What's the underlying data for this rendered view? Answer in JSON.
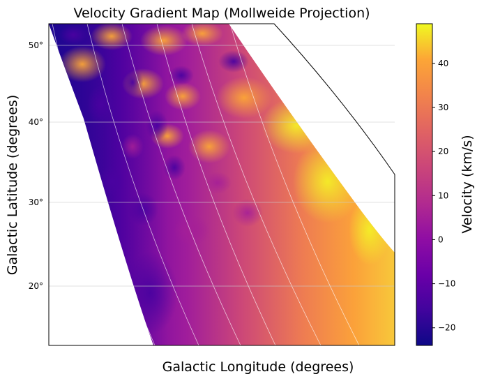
{
  "chart_data": {
    "type": "heatmap",
    "title": "Velocity Gradient Map (Mollweide Projection)",
    "xlabel": "Galactic Longitude (degrees)",
    "ylabel": "Galactic Latitude (degrees)",
    "projection": "mollweide",
    "grid": true,
    "ylim": [
      12,
      53
    ],
    "y_ticks": [
      {
        "value": 20,
        "label": "20°"
      },
      {
        "value": 30,
        "label": "30°"
      },
      {
        "value": 40,
        "label": "40°"
      },
      {
        "value": 50,
        "label": "50°"
      }
    ],
    "colorbar": {
      "label": "Velocity (km/s)",
      "colormap": "plasma",
      "range": [
        -24,
        49
      ],
      "ticks": [
        -20,
        -10,
        0,
        10,
        20,
        30,
        40
      ]
    },
    "field": {
      "description_of_gradient": "velocity increases from west (low, ~-20) to east (high, ~+45) with patchy high-velocity blobs in the northwest",
      "min": -24,
      "max": 49
    }
  }
}
